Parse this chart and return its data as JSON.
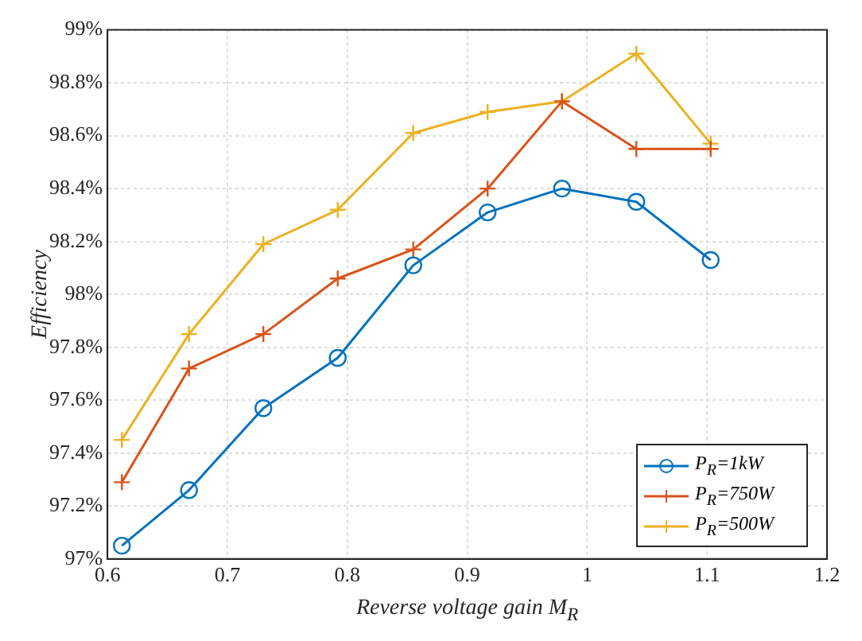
{
  "chart_data": {
    "type": "line",
    "xlabel": "Reverse voltage gain M$_{R}$",
    "ylabel": "Efficiency",
    "x": [
      0.612,
      0.668,
      0.73,
      0.792,
      0.855,
      0.917,
      0.979,
      1.041,
      1.103
    ],
    "series": [
      {
        "name": "P$_{R}$=1kW",
        "color": "#0072bd",
        "marker": "circle",
        "values": [
          97.05,
          97.26,
          97.57,
          97.76,
          98.11,
          98.31,
          98.4,
          98.35,
          98.13
        ]
      },
      {
        "name": "P$_{R}$=750W",
        "color": "#d95319",
        "marker": "cross",
        "values": [
          97.29,
          97.72,
          97.85,
          98.06,
          98.17,
          98.4,
          98.73,
          98.55,
          98.55
        ]
      },
      {
        "name": "P$_{R}$=500W",
        "color": "#edb120",
        "marker": "cross",
        "values": [
          97.45,
          97.85,
          98.19,
          98.32,
          98.61,
          98.69,
          98.73,
          98.91,
          98.57
        ]
      }
    ],
    "xlim": [
      0.6,
      1.2
    ],
    "xticks": [
      0.6,
      0.7,
      0.8,
      0.9,
      1,
      1.1,
      1.2
    ],
    "ylim": [
      97,
      99
    ],
    "yticks": [
      {
        "value": 97,
        "label": "97%"
      },
      {
        "value": 97.2,
        "label": "97.2%"
      },
      {
        "value": 97.4,
        "label": "97.4%"
      },
      {
        "value": 97.6,
        "label": "97.6%"
      },
      {
        "value": 97.8,
        "label": "97.8%"
      },
      {
        "value": 98,
        "label": "98%"
      },
      {
        "value": 98.2,
        "label": "98.2%"
      },
      {
        "value": 98.4,
        "label": "98.4%"
      },
      {
        "value": 98.6,
        "label": "98.6%"
      },
      {
        "value": 98.8,
        "label": "98.8%"
      },
      {
        "value": 99,
        "label": "99%"
      }
    ],
    "grid": true,
    "legend": "bottom right"
  }
}
